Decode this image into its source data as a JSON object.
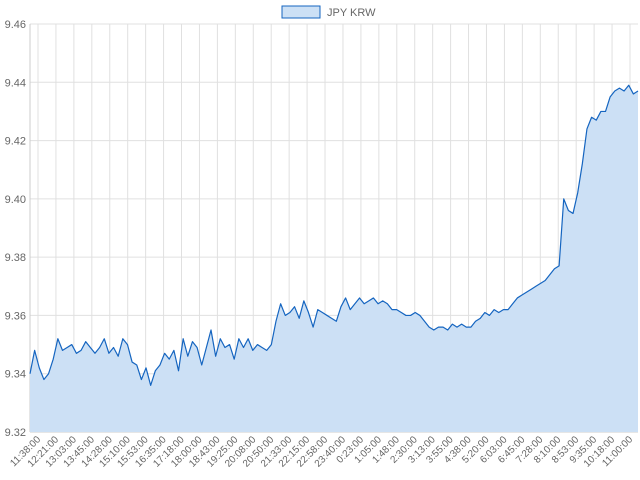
{
  "chart_data": {
    "type": "area",
    "legend": {
      "position": "top",
      "entries": [
        "JPY KRW"
      ]
    },
    "series": [
      {
        "name": "JPY KRW",
        "values": [
          9.34,
          9.348,
          9.342,
          9.338,
          9.34,
          9.345,
          9.352,
          9.348,
          9.349,
          9.35,
          9.347,
          9.348,
          9.351,
          9.349,
          9.347,
          9.349,
          9.352,
          9.347,
          9.349,
          9.346,
          9.352,
          9.35,
          9.344,
          9.343,
          9.338,
          9.342,
          9.336,
          9.341,
          9.343,
          9.347,
          9.345,
          9.348,
          9.341,
          9.352,
          9.346,
          9.351,
          9.349,
          9.343,
          9.349,
          9.355,
          9.346,
          9.352,
          9.349,
          9.35,
          9.345,
          9.352,
          9.349,
          9.352,
          9.348,
          9.35,
          9.349,
          9.348,
          9.35,
          9.358,
          9.364,
          9.36,
          9.361,
          9.363,
          9.359,
          9.365,
          9.361,
          9.356,
          9.362,
          9.361,
          9.36,
          9.359,
          9.358,
          9.363,
          9.366,
          9.362,
          9.364,
          9.366,
          9.364,
          9.365,
          9.366,
          9.364,
          9.365,
          9.364,
          9.362,
          9.362,
          9.361,
          9.36,
          9.36,
          9.361,
          9.36,
          9.358,
          9.356,
          9.355,
          9.356,
          9.356,
          9.355,
          9.357,
          9.356,
          9.357,
          9.356,
          9.356,
          9.358,
          9.359,
          9.361,
          9.36,
          9.362,
          9.361,
          9.362,
          9.362,
          9.364,
          9.366,
          9.367,
          9.368,
          9.369,
          9.37,
          9.371,
          9.372,
          9.374,
          9.376,
          9.377,
          9.4,
          9.396,
          9.395,
          9.402,
          9.412,
          9.424,
          9.428,
          9.427,
          9.43,
          9.43,
          9.435,
          9.437,
          9.438,
          9.437,
          9.439,
          9.436,
          9.437
        ],
        "color": "#1565c0",
        "fill": "#cce0f5"
      }
    ],
    "x_labels": [
      "11:38:00",
      "12:21:00",
      "13:03:00",
      "13:45:00",
      "14:28:00",
      "15:10:00",
      "15:53:00",
      "16:35:00",
      "17:18:00",
      "18:00:00",
      "18:43:00",
      "19:25:00",
      "20:08:00",
      "20:50:00",
      "21:33:00",
      "22:15:00",
      "22:58:00",
      "23:40:00",
      "0:23:00",
      "1:05:00",
      "1:48:00",
      "2:30:00",
      "3:13:00",
      "3:55:00",
      "4:38:00",
      "5:20:00",
      "6:03:00",
      "6:45:00",
      "7:28:00",
      "8:10:00",
      "8:53:00",
      "9:35:00",
      "10:18:00",
      "11:00:00"
    ],
    "y_ticks": [
      "9.32",
      "9.34",
      "9.36",
      "9.38",
      "9.40",
      "9.42",
      "9.44",
      "9.46"
    ],
    "ylim": [
      9.32,
      9.46
    ],
    "grid": true,
    "title": "",
    "xlabel": "",
    "ylabel": ""
  }
}
